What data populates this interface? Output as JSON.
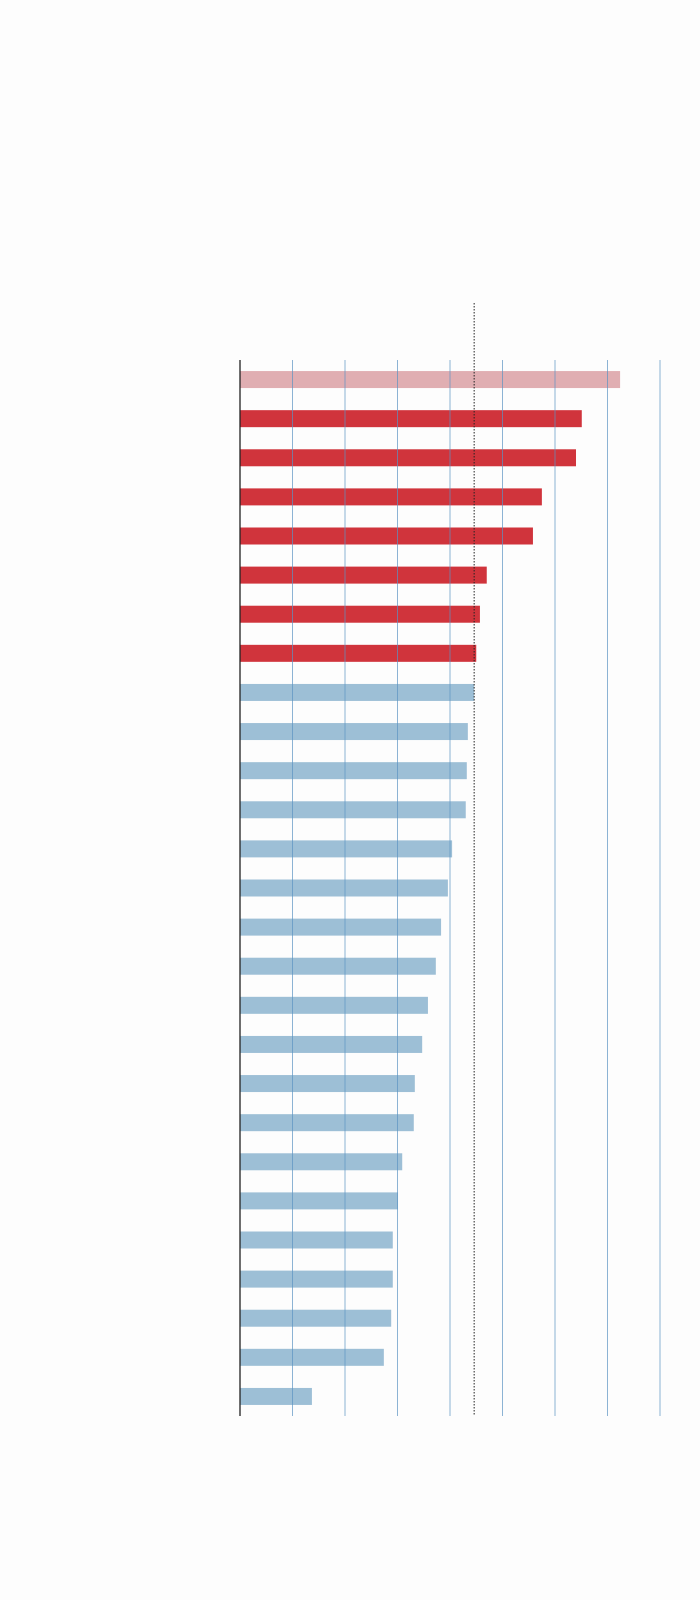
{
  "chart_data": {
    "type": "hbar",
    "categories": [
      null,
      null,
      null,
      null,
      null,
      null,
      null,
      null,
      null,
      null,
      null,
      null,
      null,
      null,
      null,
      null,
      null,
      null,
      null,
      null,
      null,
      null,
      null,
      null,
      null,
      null,
      null
    ],
    "values": [
      72.4,
      65.1,
      64.0,
      57.5,
      55.8,
      47.0,
      45.7,
      45.0,
      44.6,
      43.4,
      43.2,
      43.0,
      40.4,
      39.6,
      38.3,
      37.3,
      35.8,
      34.7,
      33.3,
      33.1,
      30.9,
      30.1,
      29.1,
      29.1,
      28.8,
      27.4,
      13.7
    ],
    "colors": [
      "#e0aeb2",
      "#d0343c",
      "#d0343c",
      "#d0343c",
      "#d0343c",
      "#d0343c",
      "#d0343c",
      "#d0343c",
      "#9dbfd6",
      "#9dbfd6",
      "#9dbfd6",
      "#9dbfd6",
      "#9dbfd6",
      "#9dbfd6",
      "#9dbfd6",
      "#9dbfd6",
      "#9dbfd6",
      "#9dbfd6",
      "#9dbfd6",
      "#9dbfd6",
      "#9dbfd6",
      "#9dbfd6",
      "#9dbfd6",
      "#9dbfd6",
      "#9dbfd6",
      "#9dbfd6",
      "#9dbfd6"
    ],
    "xlim": [
      0,
      80
    ],
    "xticks": [
      0,
      10,
      20,
      30,
      40,
      50,
      60,
      70,
      80
    ],
    "grid": true,
    "reference_line": 44.6
  }
}
